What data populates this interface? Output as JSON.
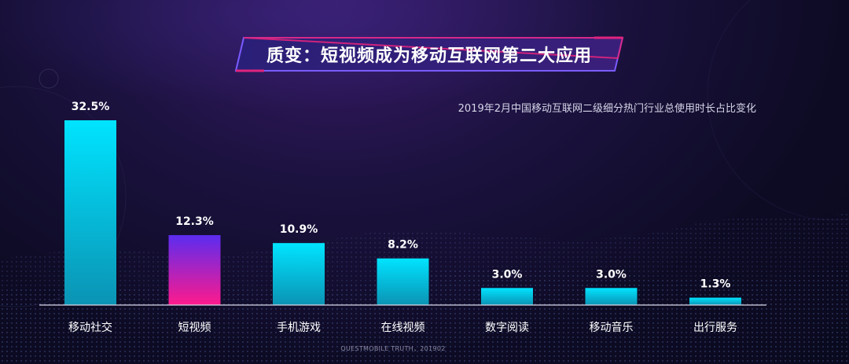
{
  "title": "质变：短视频成为移动互联网第二大应用",
  "subtitle": "2019年2月中国移动互联网二级细分热门行业总使用时长占比变化",
  "source": "QUESTMOBILE TRUTH，201902",
  "colors": {
    "bar_default_top": "#00e4ff",
    "bar_default_bottom": "#0b93b4",
    "bar_highlight_top": "#5b2cf0",
    "bar_highlight_bottom": "#ff1a8c",
    "axis": "#d8d8e8",
    "title_border": "#6a4cff",
    "title_accent": "#e0247d"
  },
  "chart_data": {
    "type": "bar",
    "title": "2019年2月中国移动互联网二级细分热门行业总使用时长占比变化",
    "categories": [
      "移动社交",
      "短视频",
      "手机游戏",
      "在线视频",
      "数字阅读",
      "移动音乐",
      "出行服务"
    ],
    "values": [
      32.5,
      12.3,
      10.9,
      8.2,
      3.0,
      3.0,
      1.3
    ],
    "labels": [
      "32.5%",
      "12.3%",
      "10.9%",
      "8.2%",
      "3.0%",
      "3.0%",
      "1.3%"
    ],
    "unit": "%",
    "highlight_index": 1,
    "xlabel": "",
    "ylabel": "",
    "ylim": [
      0,
      32.5
    ],
    "grid": false,
    "legend": "none"
  }
}
